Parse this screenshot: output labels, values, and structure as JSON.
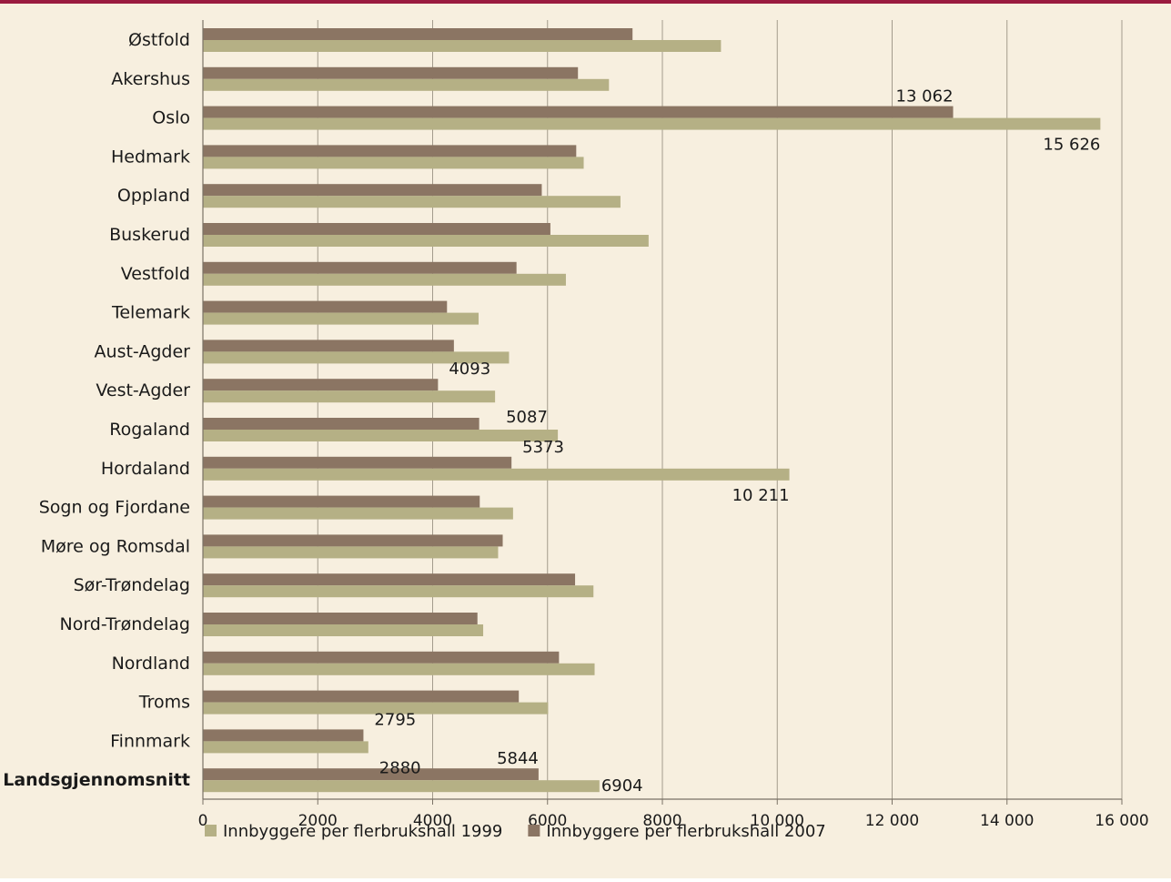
{
  "chart_data": {
    "type": "bar",
    "orientation": "horizontal",
    "categories": [
      "Østfold",
      "Akershus",
      "Oslo",
      "Hedmark",
      "Oppland",
      "Buskerud",
      "Vestfold",
      "Telemark",
      "Aust-Agder",
      "Vest-Agder",
      "Rogaland",
      "Hordaland",
      "Sogn og Fjordane",
      "Møre og Romsdal",
      "Sør-Trøndelag",
      "Nord-Trøndelag",
      "Nordland",
      "Troms",
      "Finnmark",
      "Landsgjennomsnitt"
    ],
    "bold_categories": [
      "Landsgjennomsnitt"
    ],
    "series": [
      {
        "name": "Innbyggere per flerbrukshall 2007",
        "color": "#8b7563",
        "values": [
          7480,
          6530,
          13062,
          6500,
          5900,
          6050,
          5460,
          4250,
          4370,
          4093,
          4810,
          5373,
          4820,
          5220,
          6480,
          4780,
          6200,
          5500,
          2795,
          5844
        ]
      },
      {
        "name": "Innbyggere per flerbrukshall 1999",
        "color": "#b5b085",
        "values": [
          9020,
          7070,
          15626,
          6630,
          7270,
          7760,
          6320,
          4800,
          5330,
          5087,
          6180,
          10211,
          5400,
          5140,
          6800,
          4880,
          6820,
          6010,
          2880,
          6904
        ]
      }
    ],
    "data_labels": [
      {
        "category": "Oslo",
        "series": 0,
        "text": "13 062"
      },
      {
        "category": "Oslo",
        "series": 1,
        "text": "15 626"
      },
      {
        "category": "Vest-Agder",
        "series": 0,
        "text": "4093"
      },
      {
        "category": "Vest-Agder",
        "series": 1,
        "text": "5087"
      },
      {
        "category": "Hordaland",
        "series": 0,
        "text": "5373"
      },
      {
        "category": "Hordaland",
        "series": 1,
        "text": "10 211"
      },
      {
        "category": "Finnmark",
        "series": 0,
        "text": "2795"
      },
      {
        "category": "Finnmark",
        "series": 1,
        "text": "2880"
      },
      {
        "category": "Landsgjennomsnitt",
        "series": 0,
        "text": "5844"
      },
      {
        "category": "Landsgjennomsnitt",
        "series": 1,
        "text": "6904"
      }
    ],
    "xlim": [
      0,
      16000
    ],
    "xticks": [
      0,
      2000,
      4000,
      6000,
      8000,
      10000,
      12000,
      14000,
      16000
    ],
    "xtick_labels": [
      "0",
      "2000",
      "4000",
      "6000",
      "8000",
      "10 000",
      "12 000",
      "14 000",
      "16 000"
    ],
    "grid": true,
    "legend": {
      "position": "bottom-left",
      "order": [
        1,
        0
      ]
    }
  }
}
